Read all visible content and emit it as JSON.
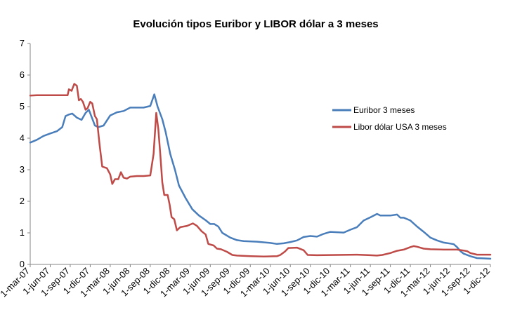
{
  "chart_data": {
    "type": "line",
    "title": "Evolución tipos Euribor y LIBOR dólar a 3 meses",
    "xlabel": "",
    "ylabel": "",
    "ylim": [
      0,
      7
    ],
    "yticks": [
      "0",
      "1",
      "2",
      "3",
      "4",
      "5",
      "6",
      "7"
    ],
    "x_start_month_index": 0,
    "x_end_month_index": 69,
    "x_tick_step_months": 3,
    "x_tick_labels": [
      "1-mar-07",
      "1-jun-07",
      "1-sep-07",
      "1-dic-07",
      "1-mar-08",
      "1-jun-08",
      "1-sep-08",
      "1-dic-08",
      "1-mar-09",
      "1-jun-09",
      "1-sep-09",
      "1-dic-09",
      "1-mar-10",
      "1-jun-10",
      "1-sep-10",
      "1-dic-10",
      "1-mar-11",
      "1-jun-11",
      "1-sep-11",
      "1-dic-11",
      "1-mar-12",
      "1-jun-12",
      "1-sep-12",
      "1-dic-12"
    ],
    "legend_position": "right",
    "series": [
      {
        "name": "Euribor 3 meses",
        "color": "#4a7ebb",
        "points": [
          [
            0,
            3.86
          ],
          [
            1,
            3.95
          ],
          [
            2,
            4.07
          ],
          [
            3,
            4.15
          ],
          [
            4,
            4.22
          ],
          [
            4.8,
            4.35
          ],
          [
            5.3,
            4.7
          ],
          [
            5.8,
            4.75
          ],
          [
            6.3,
            4.78
          ],
          [
            7,
            4.65
          ],
          [
            7.7,
            4.58
          ],
          [
            8.3,
            4.8
          ],
          [
            8.8,
            4.9
          ],
          [
            9.3,
            4.62
          ],
          [
            9.7,
            4.4
          ],
          [
            10.2,
            4.35
          ],
          [
            11,
            4.4
          ],
          [
            12,
            4.72
          ],
          [
            13,
            4.82
          ],
          [
            14,
            4.86
          ],
          [
            15,
            4.97
          ],
          [
            16,
            4.97
          ],
          [
            17,
            4.97
          ],
          [
            18,
            5.02
          ],
          [
            18.6,
            5.39
          ],
          [
            19.1,
            5.0
          ],
          [
            19.8,
            4.6
          ],
          [
            20.3,
            4.2
          ],
          [
            21,
            3.5
          ],
          [
            21.7,
            3.0
          ],
          [
            22.3,
            2.5
          ],
          [
            23.3,
            2.1
          ],
          [
            24.3,
            1.75
          ],
          [
            25.3,
            1.55
          ],
          [
            26.3,
            1.4
          ],
          [
            27,
            1.28
          ],
          [
            27.6,
            1.28
          ],
          [
            28.2,
            1.2
          ],
          [
            28.8,
            1.0
          ],
          [
            30,
            0.85
          ],
          [
            31,
            0.77
          ],
          [
            32,
            0.74
          ],
          [
            34,
            0.72
          ],
          [
            36,
            0.68
          ],
          [
            37,
            0.65
          ],
          [
            38,
            0.67
          ],
          [
            39,
            0.71
          ],
          [
            40,
            0.76
          ],
          [
            41,
            0.87
          ],
          [
            42,
            0.9
          ],
          [
            43,
            0.88
          ],
          [
            44,
            0.97
          ],
          [
            45,
            1.03
          ],
          [
            46,
            1.02
          ],
          [
            47,
            1.01
          ],
          [
            48,
            1.1
          ],
          [
            49,
            1.18
          ],
          [
            50,
            1.39
          ],
          [
            51,
            1.49
          ],
          [
            52,
            1.6
          ],
          [
            52.5,
            1.55
          ],
          [
            54,
            1.55
          ],
          [
            55,
            1.58
          ],
          [
            55.5,
            1.48
          ],
          [
            56,
            1.48
          ],
          [
            57,
            1.39
          ],
          [
            58,
            1.2
          ],
          [
            59,
            1.03
          ],
          [
            60,
            0.85
          ],
          [
            61,
            0.76
          ],
          [
            62,
            0.69
          ],
          [
            63,
            0.66
          ],
          [
            63.5,
            0.64
          ],
          [
            64,
            0.55
          ],
          [
            64.5,
            0.42
          ],
          [
            65,
            0.34
          ],
          [
            66,
            0.26
          ],
          [
            67,
            0.2
          ],
          [
            68,
            0.19
          ],
          [
            69,
            0.18
          ]
        ]
      },
      {
        "name": "Libor dólar USA 3 meses",
        "color": "#be4b48",
        "points": [
          [
            0,
            5.35
          ],
          [
            1,
            5.36
          ],
          [
            2,
            5.36
          ],
          [
            3,
            5.36
          ],
          [
            4,
            5.36
          ],
          [
            5.6,
            5.36
          ],
          [
            5.8,
            5.55
          ],
          [
            6.2,
            5.5
          ],
          [
            6.6,
            5.72
          ],
          [
            7.0,
            5.66
          ],
          [
            7.3,
            5.2
          ],
          [
            7.6,
            5.24
          ],
          [
            7.9,
            5.15
          ],
          [
            8.3,
            4.9
          ],
          [
            8.6,
            4.95
          ],
          [
            9.0,
            5.15
          ],
          [
            9.3,
            5.1
          ],
          [
            9.7,
            4.7
          ],
          [
            10.0,
            4.6
          ],
          [
            10.4,
            3.8
          ],
          [
            10.8,
            3.1
          ],
          [
            11.5,
            3.05
          ],
          [
            12,
            2.85
          ],
          [
            12.3,
            2.55
          ],
          [
            12.7,
            2.7
          ],
          [
            13.2,
            2.7
          ],
          [
            13.6,
            2.92
          ],
          [
            14.0,
            2.75
          ],
          [
            14.5,
            2.72
          ],
          [
            15,
            2.78
          ],
          [
            16,
            2.8
          ],
          [
            17,
            2.8
          ],
          [
            18,
            2.82
          ],
          [
            18.5,
            3.5
          ],
          [
            18.9,
            4.8
          ],
          [
            19.2,
            4.3
          ],
          [
            19.5,
            3.5
          ],
          [
            19.8,
            2.6
          ],
          [
            20.1,
            2.2
          ],
          [
            20.6,
            2.2
          ],
          [
            20.9,
            1.9
          ],
          [
            21.2,
            1.5
          ],
          [
            21.6,
            1.43
          ],
          [
            22,
            1.08
          ],
          [
            22.5,
            1.18
          ],
          [
            23.5,
            1.22
          ],
          [
            24.4,
            1.3
          ],
          [
            25,
            1.22
          ],
          [
            25.7,
            1.05
          ],
          [
            26.3,
            0.95
          ],
          [
            26.7,
            0.65
          ],
          [
            27.5,
            0.6
          ],
          [
            28,
            0.5
          ],
          [
            28.6,
            0.48
          ],
          [
            29.5,
            0.4
          ],
          [
            30.3,
            0.3
          ],
          [
            31,
            0.28
          ],
          [
            33,
            0.26
          ],
          [
            35,
            0.25
          ],
          [
            37,
            0.26
          ],
          [
            37.5,
            0.3
          ],
          [
            38.2,
            0.41
          ],
          [
            38.7,
            0.52
          ],
          [
            40,
            0.53
          ],
          [
            41,
            0.45
          ],
          [
            41.6,
            0.3
          ],
          [
            43,
            0.29
          ],
          [
            46,
            0.3
          ],
          [
            49,
            0.31
          ],
          [
            51,
            0.29
          ],
          [
            52,
            0.28
          ],
          [
            52.8,
            0.3
          ],
          [
            54,
            0.36
          ],
          [
            55,
            0.43
          ],
          [
            56,
            0.47
          ],
          [
            57,
            0.55
          ],
          [
            57.5,
            0.58
          ],
          [
            58,
            0.56
          ],
          [
            59,
            0.5
          ],
          [
            60,
            0.48
          ],
          [
            62,
            0.47
          ],
          [
            64,
            0.47
          ],
          [
            65,
            0.44
          ],
          [
            65.5,
            0.42
          ],
          [
            66,
            0.36
          ],
          [
            67,
            0.31
          ],
          [
            68,
            0.31
          ],
          [
            69,
            0.31
          ]
        ]
      }
    ]
  }
}
